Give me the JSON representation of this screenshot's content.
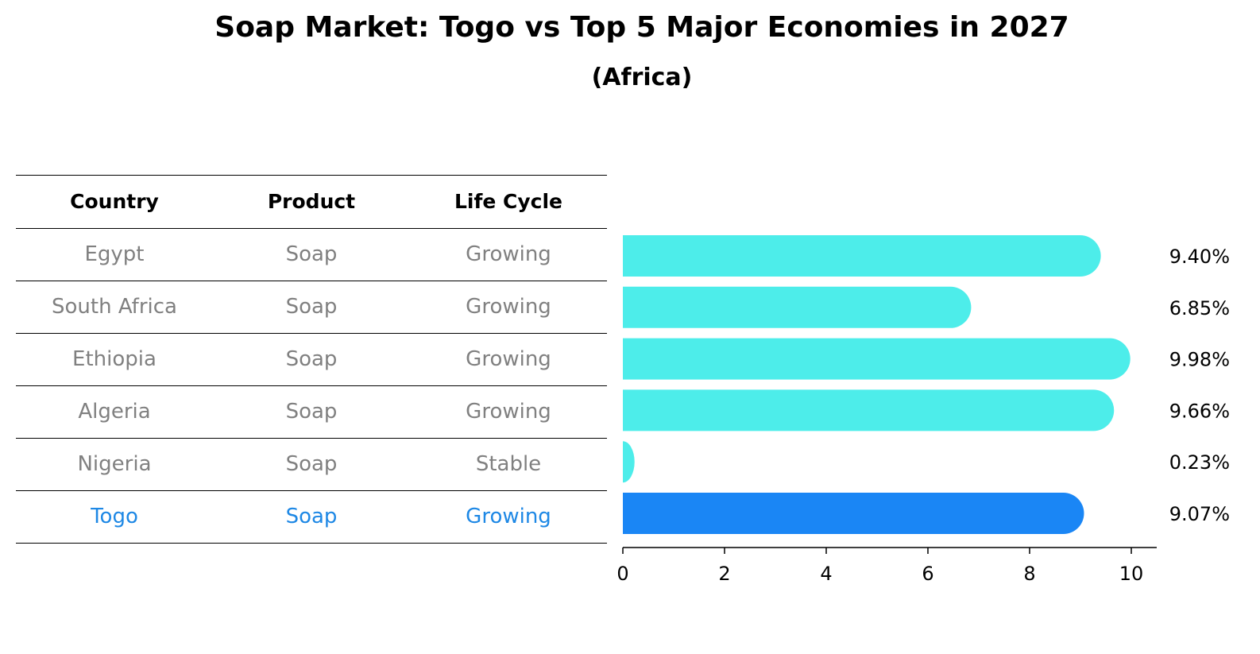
{
  "chart_data": {
    "type": "bar",
    "orientation": "horizontal",
    "title": "Soap Market: Togo vs Top 5 Major Economies in 2027",
    "subtitle": "(Africa)",
    "table": {
      "columns": [
        "Country",
        "Product",
        "Life Cycle"
      ],
      "rows": [
        [
          "Egypt",
          "Soap",
          "Growing"
        ],
        [
          "South Africa",
          "Soap",
          "Growing"
        ],
        [
          "Ethiopia",
          "Soap",
          "Growing"
        ],
        [
          "Algeria",
          "Soap",
          "Growing"
        ],
        [
          "Nigeria",
          "Soap",
          "Stable"
        ],
        [
          "Togo",
          "Soap",
          "Growing"
        ]
      ]
    },
    "categories": [
      "Egypt",
      "South Africa",
      "Ethiopia",
      "Algeria",
      "Nigeria",
      "Togo"
    ],
    "values": [
      9.4,
      6.85,
      9.98,
      9.66,
      0.23,
      9.07
    ],
    "value_labels": [
      "9.40%",
      "6.85%",
      "9.98%",
      "9.66%",
      "0.23%",
      "9.07%"
    ],
    "highlight": "Togo",
    "xlim": [
      0,
      10.5
    ],
    "xticks": [
      0,
      2,
      4,
      6,
      8,
      10
    ],
    "grid": false,
    "colors": {
      "bar": "#4DEDEA",
      "highlight": "#1A86F5",
      "highlight_text": "#1E88E5",
      "text_muted": "#808080"
    }
  }
}
